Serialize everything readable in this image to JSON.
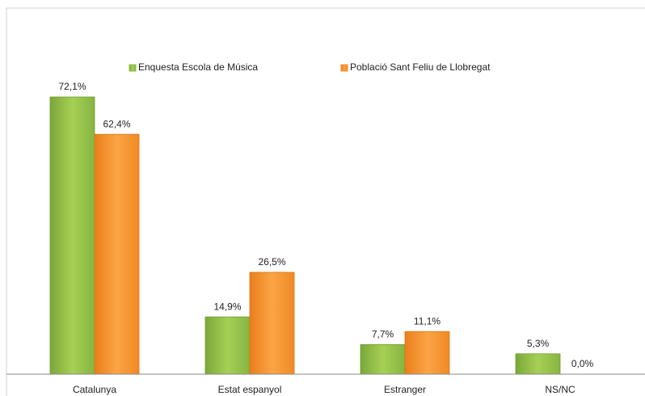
{
  "chart_data": {
    "type": "bar",
    "categories": [
      "Catalunya",
      "Estat espanyol",
      "Estranger",
      "NS/NC"
    ],
    "series": [
      {
        "name": "Enquesta Escola de Música",
        "color": "#8fbf3f",
        "values": [
          72.1,
          14.9,
          7.7,
          5.3
        ],
        "value_labels": [
          "72,1%",
          "14,9%",
          "7,7%",
          "5,3%"
        ]
      },
      {
        "name": "Població Sant Feliu de Llobregat",
        "color": "#f7922a",
        "values": [
          62.4,
          26.5,
          11.1,
          0.0
        ],
        "value_labels": [
          "62,4%",
          "26,5%",
          "11,1%",
          "0,0%"
        ]
      }
    ],
    "legend": "top"
  }
}
